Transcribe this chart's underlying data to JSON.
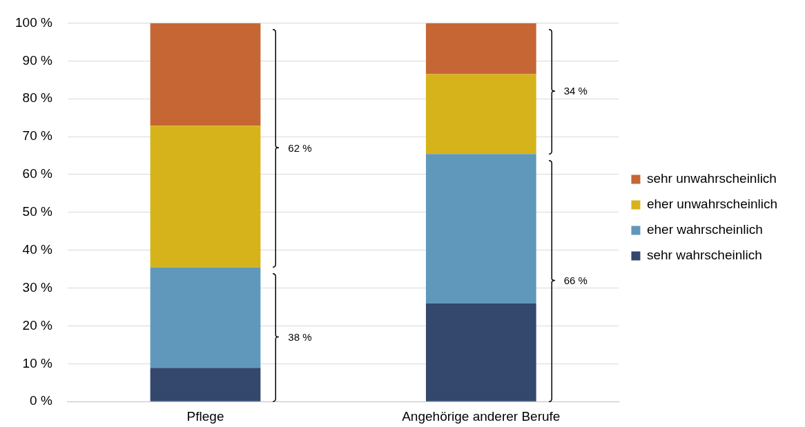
{
  "chart_data": {
    "type": "bar",
    "stacked": true,
    "categories": [
      "Pflege",
      "Angehörige anderer Berufe"
    ],
    "series": [
      {
        "name": "sehr wahrscheinlich",
        "color": "#34476d",
        "values": [
          8.9,
          25.9
        ]
      },
      {
        "name": "eher wahrscheinlich",
        "color": "#6098bb",
        "values": [
          26.6,
          39.5
        ]
      },
      {
        "name": "eher unwahrscheinlich",
        "color": "#d6b31a",
        "values": [
          37.4,
          21.1
        ]
      },
      {
        "name": "sehr unwahrscheinlich",
        "color": "#c66635",
        "values": [
          27.1,
          13.5
        ]
      }
    ],
    "ylim": [
      0,
      100
    ],
    "yticks": [
      {
        "value": 0,
        "label": "0 %"
      },
      {
        "value": 10,
        "label": "10 %"
      },
      {
        "value": 20,
        "label": "20 %"
      },
      {
        "value": 30,
        "label": "30 %"
      },
      {
        "value": 40,
        "label": "40 %"
      },
      {
        "value": 50,
        "label": "50 %"
      },
      {
        "value": 60,
        "label": "60 %"
      },
      {
        "value": 70,
        "label": "70 %"
      },
      {
        "value": 80,
        "label": "80 %"
      },
      {
        "value": 90,
        "label": "90 %"
      },
      {
        "value": 100,
        "label": "100 %"
      }
    ],
    "grid": "y",
    "legend": "right",
    "annotations": [
      "38 %",
      "62 %",
      "66 %",
      "34 %"
    ]
  }
}
